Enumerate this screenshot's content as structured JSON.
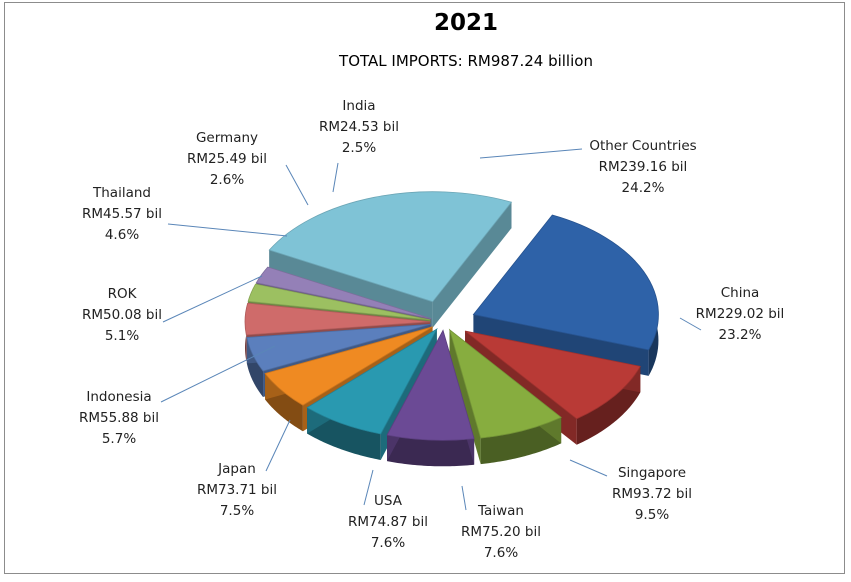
{
  "chart_data": {
    "type": "pie",
    "title": "2021",
    "subtitle": "TOTAL IMPORTS: RM987.24 billion",
    "slices": [
      {
        "name": "Other Countries",
        "value": 239.16,
        "value_label": "RM239.16 bil",
        "percent_label": "24.2%",
        "color": "#7fc3d6"
      },
      {
        "name": "China",
        "value": 229.02,
        "value_label": "RM229.02 bil",
        "percent_label": "23.2%",
        "color": "#2e62a8"
      },
      {
        "name": "Singapore",
        "value": 93.72,
        "value_label": "RM93.72 bil",
        "percent_label": "9.5%",
        "color": "#b93a36"
      },
      {
        "name": "Taiwan",
        "value": 75.2,
        "value_label": "RM75.20 bil",
        "percent_label": "7.6%",
        "color": "#87ad3f"
      },
      {
        "name": "USA",
        "value": 74.87,
        "value_label": "RM74.87 bil",
        "percent_label": "7.6%",
        "color": "#6b4a95"
      },
      {
        "name": "Japan",
        "value": 73.71,
        "value_label": "RM73.71 bil",
        "percent_label": "7.5%",
        "color": "#2999b0"
      },
      {
        "name": "Indonesia",
        "value": 55.88,
        "value_label": "RM55.88 bil",
        "percent_label": "5.7%",
        "color": "#ef8a22"
      },
      {
        "name": "ROK",
        "value": 50.08,
        "value_label": "RM50.08 bil",
        "percent_label": "5.1%",
        "color": "#5b7fbd"
      },
      {
        "name": "Thailand",
        "value": 45.57,
        "value_label": "RM45.57 bil",
        "percent_label": "4.6%",
        "color": "#cf6b6a"
      },
      {
        "name": "Germany",
        "value": 25.49,
        "value_label": "RM25.49 bil",
        "percent_label": "2.6%",
        "color": "#9cc061"
      },
      {
        "name": "India",
        "value": 24.53,
        "value_label": "RM24.53 bil",
        "percent_label": "2.5%",
        "color": "#9480b7"
      }
    ],
    "legend": "none",
    "style": "exploded 3D pie with leader-line callout labels"
  }
}
